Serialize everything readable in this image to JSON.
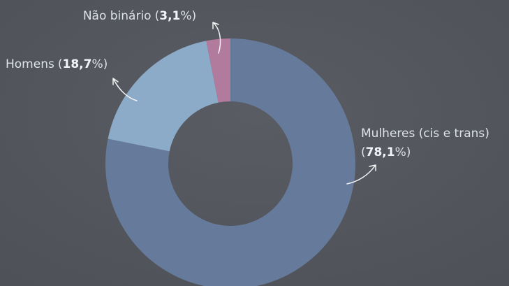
{
  "chart_data": {
    "type": "donut",
    "categories": [
      "Mulheres (cis e trans)",
      "Homens",
      "Não binário"
    ],
    "values": [
      78.1,
      18.7,
      3.1
    ],
    "value_labels": [
      "(78,1%)",
      "(18,7%)",
      "(3,1%)"
    ],
    "colors": [
      "#667b9b",
      "#8cabc9",
      "#b07b9c"
    ]
  }
}
